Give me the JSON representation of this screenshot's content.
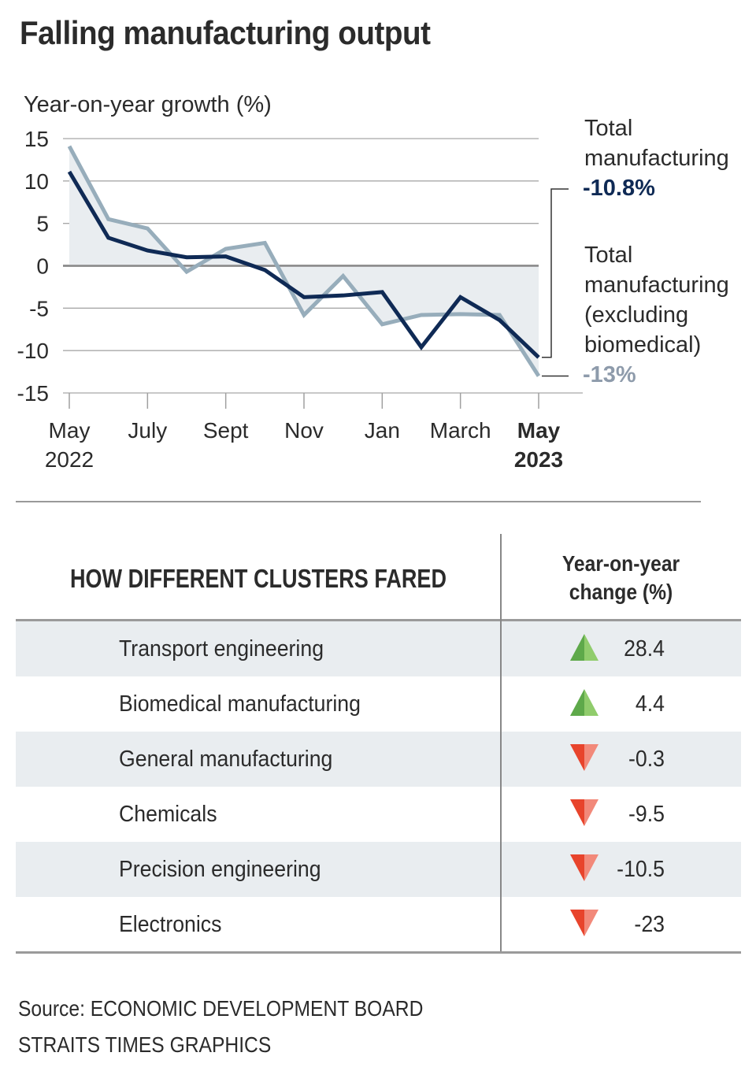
{
  "title": "Falling manufacturing output",
  "chart_data": {
    "type": "line",
    "title": "Falling manufacturing output",
    "ylabel": "Year-on-year growth (%)",
    "xlabel": "",
    "ylim": [
      -15,
      15
    ],
    "yticks": [
      15,
      10,
      5,
      0,
      -5,
      -10,
      -15
    ],
    "x": [
      "May 2022",
      "Jun 2022",
      "Jul 2022",
      "Aug 2022",
      "Sep 2022",
      "Oct 2022",
      "Nov 2022",
      "Dec 2022",
      "Jan 2023",
      "Feb 2023",
      "Mar 2023",
      "Apr 2023",
      "May 2023"
    ],
    "xtick_labels": [
      {
        "index": 0,
        "line1": "May",
        "line2": "2022",
        "bold": false
      },
      {
        "index": 2,
        "line1": "July",
        "line2": "",
        "bold": false
      },
      {
        "index": 4,
        "line1": "Sept",
        "line2": "",
        "bold": false
      },
      {
        "index": 6,
        "line1": "Nov",
        "line2": "",
        "bold": false
      },
      {
        "index": 8,
        "line1": "Jan",
        "line2": "",
        "bold": false
      },
      {
        "index": 10,
        "line1": "March",
        "line2": "",
        "bold": false
      },
      {
        "index": 12,
        "line1": "May",
        "line2": "2023",
        "bold": true
      }
    ],
    "series": [
      {
        "name": "Total manufacturing (excluding biomedical)",
        "color": "#97adbb",
        "fill": "#e9edf0",
        "values": [
          14.1,
          5.5,
          4.4,
          -0.7,
          2.0,
          2.7,
          -5.8,
          -1.2,
          -6.9,
          -5.8,
          -5.7,
          -5.8,
          -13.0
        ]
      },
      {
        "name": "Total manufacturing",
        "color": "#0f2a55",
        "values": [
          11.1,
          3.3,
          1.8,
          1.0,
          1.1,
          -0.5,
          -3.7,
          -3.5,
          -3.1,
          -9.6,
          -3.7,
          -6.4,
          -10.8
        ]
      }
    ],
    "annotations": [
      {
        "series": 1,
        "label_lines": [
          "Total",
          "manufacturing"
        ],
        "value_text": "-10.8%",
        "value_color": "#0f2a55"
      },
      {
        "series": 0,
        "label_lines": [
          "Total",
          "manufacturing",
          "(excluding",
          "biomedical)"
        ],
        "value_text": "-13%",
        "value_color": "#8e9bab"
      }
    ],
    "grid": true
  },
  "table": {
    "header_left": "HOW DIFFERENT CLUSTERS FARED",
    "header_right_line1": "Year-on-year",
    "header_right_line2": "change (%)",
    "rows": [
      {
        "name": "Transport engineering",
        "value": "28.4",
        "direction": "up"
      },
      {
        "name": "Biomedical manufacturing",
        "value": "4.4",
        "direction": "up"
      },
      {
        "name": "General manufacturing",
        "value": "-0.3",
        "direction": "down"
      },
      {
        "name": "Chemicals",
        "value": "-9.5",
        "direction": "down"
      },
      {
        "name": "Precision engineering",
        "value": "-10.5",
        "direction": "down"
      },
      {
        "name": "Electronics",
        "value": "-23",
        "direction": "down"
      }
    ],
    "colors": {
      "up_dark": "#5ea94a",
      "up_light": "#90cc6c",
      "down_dark": "#e8442c",
      "down_light": "#f2897a"
    }
  },
  "source_line1": "Source: ECONOMIC DEVELOPMENT BOARD",
  "source_line2": "STRAITS TIMES GRAPHICS"
}
